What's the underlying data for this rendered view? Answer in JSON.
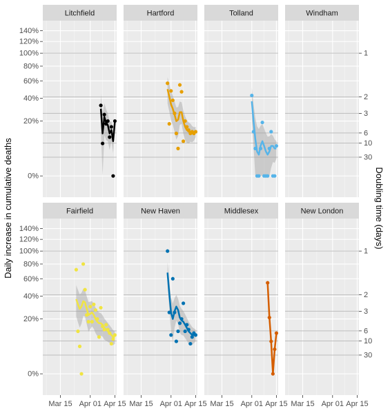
{
  "chart_data": {
    "type": "scatter",
    "ylabel": "Daily increase in cumulative deaths",
    "ylabel_right": "Doubling time (days)",
    "x_tick_labels": [
      "Mar 15",
      "Apr 01",
      "Apr 15"
    ],
    "x_tick_dates": [
      "2020-03-15",
      "2020-04-01",
      "2020-04-15"
    ],
    "xlim": [
      "2020-03-05",
      "2020-04-16"
    ],
    "y_scale": "sqrt",
    "ylim": [
      -0.03,
      1.6
    ],
    "y_tick_labels": [
      "0%",
      "20%",
      "40%",
      "60%",
      "80%",
      "100%",
      "120%",
      "140%"
    ],
    "y_tick_values": [
      0,
      0.2,
      0.4,
      0.6,
      0.8,
      1.0,
      1.2,
      1.4
    ],
    "doubling_time_labels": [
      "1",
      "2",
      "3",
      "6",
      "10",
      "30"
    ],
    "doubling_time_values": [
      1,
      2,
      3,
      6,
      10,
      30
    ],
    "grid": true,
    "panels": [
      {
        "name": "Litchfield",
        "color": "#000000",
        "x": [
          "2020-04-07",
          "2020-04-08",
          "2020-04-09",
          "2020-04-10",
          "2020-04-11",
          "2020-04-12",
          "2020-04-13",
          "2020-04-14",
          "2020-04-15"
        ],
        "y": [
          0.33,
          0.07,
          0.25,
          0.18,
          0.2,
          0.1,
          0.16,
          0.0,
          0.2
        ],
        "smooth": [
          0.3,
          0.12,
          0.23,
          0.19,
          0.17,
          0.12,
          0.14,
          0.08,
          0.2
        ]
      },
      {
        "name": "Hartford",
        "color": "#E69F00",
        "x": [
          "2020-03-30",
          "2020-03-31",
          "2020-04-01",
          "2020-04-02",
          "2020-04-03",
          "2020-04-04",
          "2020-04-05",
          "2020-04-06",
          "2020-04-07",
          "2020-04-08",
          "2020-04-09",
          "2020-04-10",
          "2020-04-11",
          "2020-04-12",
          "2020-04-13",
          "2020-04-14",
          "2020-04-15"
        ],
        "y": [
          0.57,
          0.18,
          0.48,
          0.38,
          0.26,
          0.12,
          0.05,
          0.55,
          0.47,
          0.08,
          0.2,
          0.16,
          0.14,
          0.12,
          0.13,
          0.12,
          0.13
        ],
        "smooth": [
          0.5,
          0.42,
          0.34,
          0.3,
          0.25,
          0.2,
          0.21,
          0.27,
          0.27,
          0.2,
          0.16,
          0.14,
          0.13,
          0.13,
          0.12,
          0.12,
          0.13
        ]
      },
      {
        "name": "Tolland",
        "color": "#56B4E9",
        "x": [
          "2020-04-01",
          "2020-04-02",
          "2020-04-03",
          "2020-04-04",
          "2020-04-05",
          "2020-04-06",
          "2020-04-07",
          "2020-04-08",
          "2020-04-09",
          "2020-04-10",
          "2020-04-11",
          "2020-04-12",
          "2020-04-13",
          "2020-04-14",
          "2020-04-15"
        ],
        "y": [
          0.43,
          0.13,
          0.05,
          0.0,
          0.0,
          0.05,
          0.19,
          0.0,
          0.0,
          0.0,
          0.05,
          0.13,
          0.0,
          0.0,
          0.06
        ],
        "smooth": [
          0.37,
          0.2,
          0.09,
          0.04,
          0.03,
          0.06,
          0.08,
          0.06,
          0.04,
          0.03,
          0.04,
          0.06,
          0.06,
          0.05,
          0.05
        ]
      },
      {
        "name": "Windham",
        "color": "#009E73",
        "x": [],
        "y": [],
        "smooth": []
      },
      {
        "name": "Fairfield",
        "color": "#F0E442",
        "x": [
          "2020-03-24",
          "2020-03-25",
          "2020-03-26",
          "2020-03-27",
          "2020-03-28",
          "2020-03-29",
          "2020-03-30",
          "2020-03-31",
          "2020-04-01",
          "2020-04-02",
          "2020-04-03",
          "2020-04-04",
          "2020-04-05",
          "2020-04-06",
          "2020-04-07",
          "2020-04-08",
          "2020-04-09",
          "2020-04-10",
          "2020-04-11",
          "2020-04-12",
          "2020-04-13",
          "2020-04-14",
          "2020-04-15"
        ],
        "y": [
          0.72,
          0.12,
          0.05,
          0.0,
          0.8,
          0.47,
          0.23,
          0.18,
          0.3,
          0.18,
          0.32,
          0.27,
          0.2,
          0.09,
          0.29,
          0.15,
          0.13,
          0.16,
          0.13,
          0.11,
          0.06,
          0.08,
          0.1
        ],
        "smooth": [
          0.37,
          0.32,
          0.28,
          0.3,
          0.35,
          0.34,
          0.28,
          0.23,
          0.24,
          0.25,
          0.23,
          0.2,
          0.18,
          0.17,
          0.17,
          0.16,
          0.14,
          0.13,
          0.12,
          0.11,
          0.1,
          0.09,
          0.09
        ]
      },
      {
        "name": "New Haven",
        "color": "#0072B2",
        "x": [
          "2020-03-30",
          "2020-03-31",
          "2020-04-01",
          "2020-04-02",
          "2020-04-03",
          "2020-04-04",
          "2020-04-05",
          "2020-04-06",
          "2020-04-07",
          "2020-04-08",
          "2020-04-09",
          "2020-04-10",
          "2020-04-11",
          "2020-04-12",
          "2020-04-13",
          "2020-04-14",
          "2020-04-15"
        ],
        "y": [
          1.0,
          0.25,
          0.1,
          0.6,
          0.25,
          0.07,
          0.12,
          0.17,
          0.2,
          0.33,
          0.12,
          0.16,
          0.13,
          0.06,
          0.09,
          0.11,
          0.1
        ],
        "smooth": [
          0.68,
          0.43,
          0.25,
          0.2,
          0.26,
          0.3,
          0.27,
          0.21,
          0.19,
          0.18,
          0.16,
          0.14,
          0.12,
          0.11,
          0.1,
          0.1,
          0.1
        ]
      },
      {
        "name": "Middlesex",
        "color": "#D55E00",
        "x": [
          "2020-04-10",
          "2020-04-11",
          "2020-04-12",
          "2020-04-13",
          "2020-04-14",
          "2020-04-15"
        ],
        "y": [
          0.55,
          0.21,
          0.07,
          0.0,
          0.04,
          0.11
        ],
        "smooth": [
          0.55,
          0.21,
          0.07,
          0.0,
          0.04,
          0.11
        ]
      },
      {
        "name": "New London",
        "color": "#CC79A7",
        "x": [],
        "y": [],
        "smooth": []
      }
    ]
  }
}
